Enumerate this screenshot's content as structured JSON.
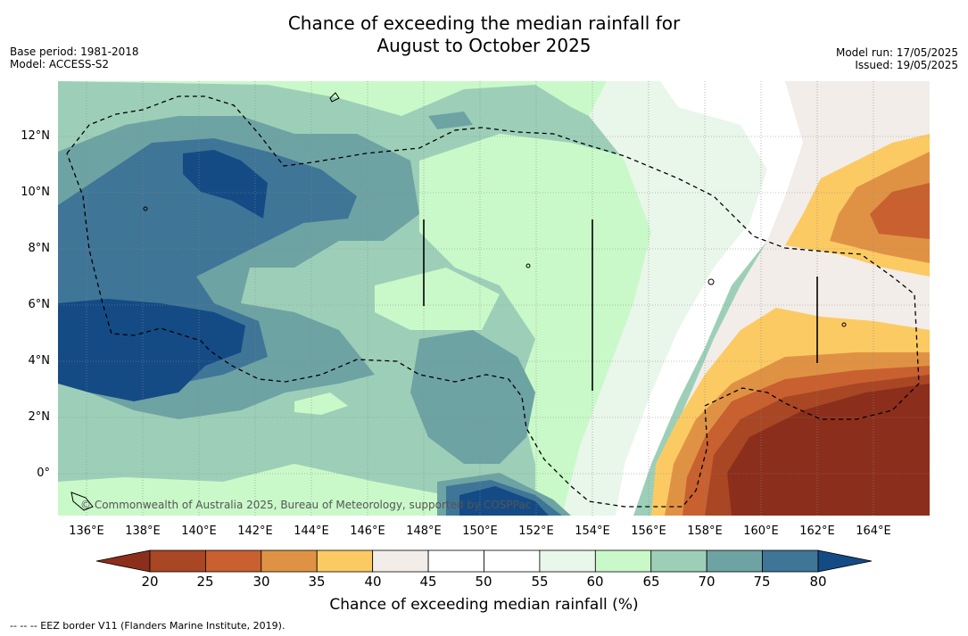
{
  "title_line1": "Chance of exceeding the median rainfall for",
  "title_line2": "August to October 2025",
  "meta_left": [
    "Base period: 1981-2018",
    "Model: ACCESS-S2"
  ],
  "meta_right": [
    "Model run: 17/05/2025",
    "Issued: 19/05/2025"
  ],
  "lat_labels": [
    "12°N",
    "10°N",
    "8°N",
    "6°N",
    "4°N",
    "2°N",
    "0°"
  ],
  "lon_labels": [
    "136°E",
    "138°E",
    "140°E",
    "142°E",
    "144°E",
    "146°E",
    "148°E",
    "150°E",
    "152°E",
    "154°E",
    "156°E",
    "158°E",
    "160°E",
    "162°E",
    "164°E"
  ],
  "copyright": "© Commonwealth of Australia 2025, Bureau of Meteorology, supported by COSPPac",
  "colorbar": {
    "ticks": [
      "20",
      "25",
      "30",
      "35",
      "40",
      "45",
      "50",
      "55",
      "60",
      "65",
      "70",
      "75",
      "80"
    ],
    "colors": {
      "below20": "#8c2e1c",
      "c20_25": "#a94624",
      "c25_30": "#c8602f",
      "c30_35": "#e09244",
      "c35_40": "#fcca63",
      "c40_45": "#f2ede8",
      "c45_50": "#ffffff",
      "c50_55": "#ffffff",
      "c55_60": "#e9f6ea",
      "c60_65": "#caf9c9",
      "c65_70": "#9dcfb8",
      "c70_75": "#6ea3a4",
      "c75_80": "#3f7597",
      "above80": "#144b85"
    },
    "title": "Chance of exceeding median rainfall (%)"
  },
  "footnote": "-- -- -- EEZ border V11 (Flanders Marine Institute, 2019)."
}
